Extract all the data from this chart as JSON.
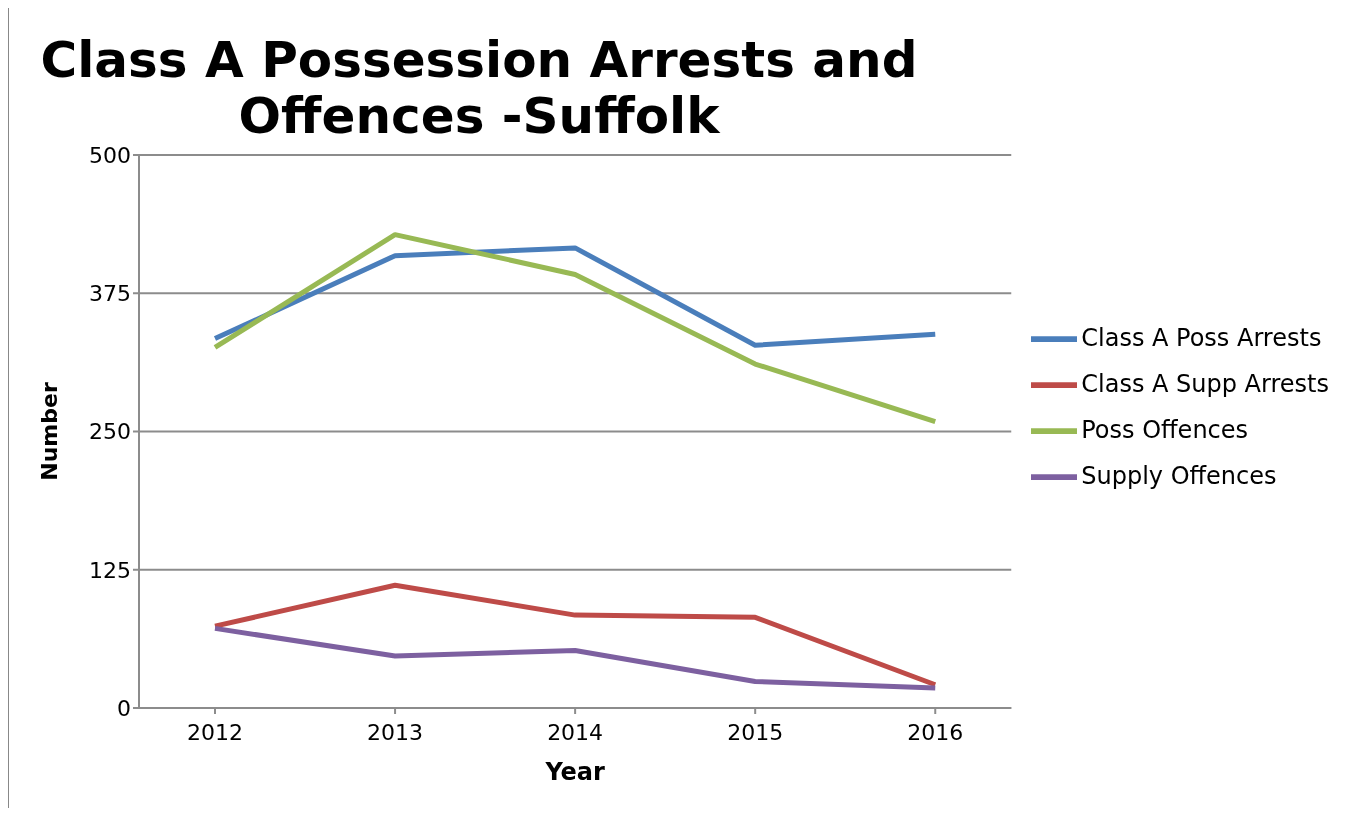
{
  "chart_data": {
    "type": "line",
    "title": "Class A Possession Arrests and Offences -Suffolk",
    "xlabel": "Year",
    "ylabel": "Number",
    "categories": [
      "2012",
      "2013",
      "2014",
      "2015",
      "2016"
    ],
    "series": [
      {
        "name": "Class A Poss Arrests",
        "color": "#4a7ebb",
        "values": [
          334,
          409,
          416,
          328,
          338
        ]
      },
      {
        "name": "Class A Supp Arrests",
        "color": "#be4b48",
        "values": [
          74,
          111,
          84,
          82,
          21
        ]
      },
      {
        "name": "Poss Offences",
        "color": "#98b954",
        "values": [
          326,
          428,
          392,
          311,
          259
        ]
      },
      {
        "name": "Supply Offences",
        "color": "#7d60a0",
        "values": [
          72,
          47,
          52,
          24,
          18
        ]
      }
    ],
    "ylim": [
      0,
      500
    ],
    "yticks": [
      0,
      125,
      250,
      375,
      500
    ],
    "grid": "y",
    "legend": "right",
    "marker": "none",
    "line_style": "solid"
  }
}
